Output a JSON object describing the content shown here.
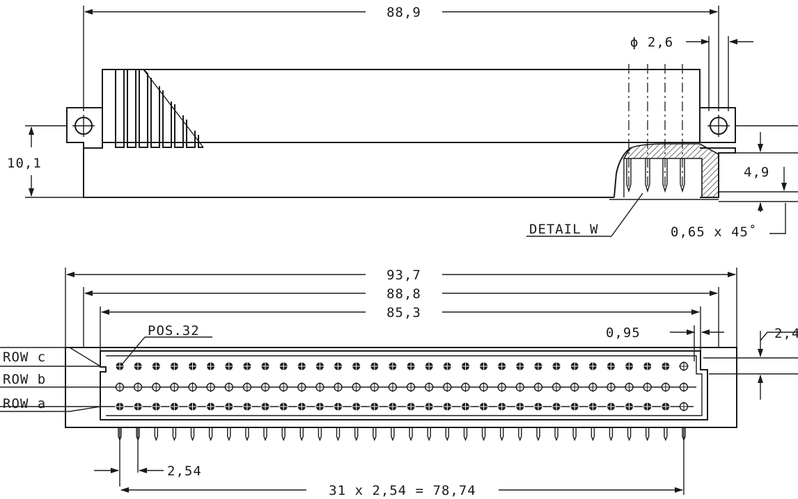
{
  "top_view": {
    "overall_width": "88,9",
    "hole_diameter": "ϕ  2,6",
    "height": "10,1",
    "detail_height": "4,9",
    "chamfer": "0,65  x  45˚",
    "detail_label": "DETAIL  W"
  },
  "front_view": {
    "width_outer": "93,7",
    "width_mid": "88,8",
    "width_inner": "85,3",
    "pos_label": "POS.32",
    "offset": "0,95",
    "row_pitch": "2,4",
    "row_c": "ROW  c",
    "row_b": "ROW  b",
    "row_a": "ROW  a",
    "pin_pitch": "2,54",
    "total_pitch": "31  x  2,54  =  78,74",
    "pin_count": 32
  }
}
